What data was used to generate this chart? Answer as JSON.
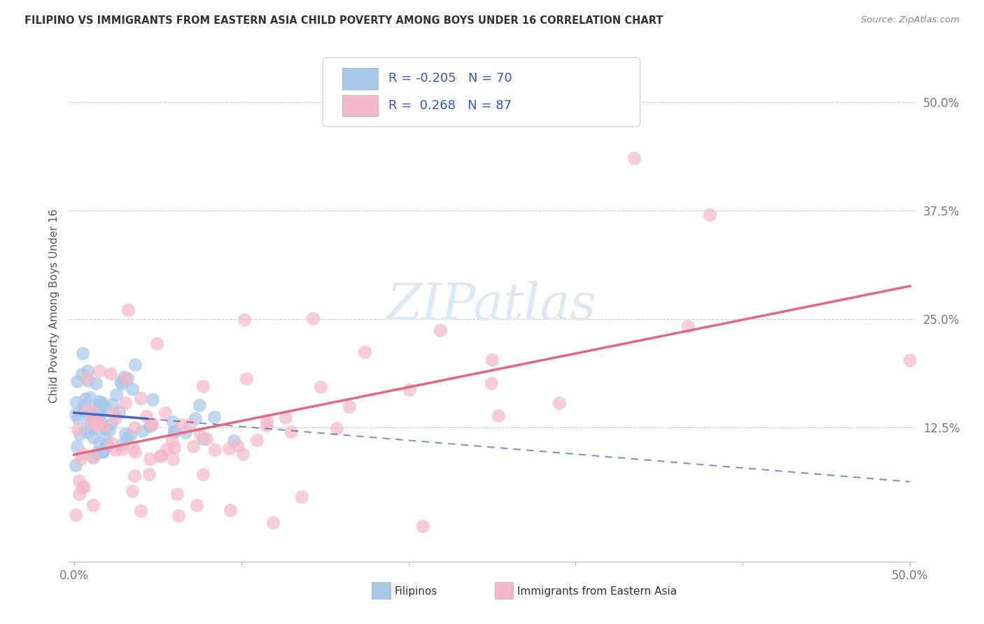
{
  "title": "FILIPINO VS IMMIGRANTS FROM EASTERN ASIA CHILD POVERTY AMONG BOYS UNDER 16 CORRELATION CHART",
  "source": "Source: ZipAtlas.com",
  "ylabel": "Child Poverty Among Boys Under 16",
  "legend_R_blue": "-0.205",
  "legend_N_blue": "70",
  "legend_R_pink": "0.268",
  "legend_N_pink": "87",
  "color_blue": "#a8c8e8",
  "color_blue_line": "#4466bb",
  "color_pink": "#f5b8c8",
  "color_pink_line": "#e06880",
  "watermark_color": "#e0e8f0",
  "grid_color": "#cccccc",
  "title_color": "#333333",
  "source_color": "#888888",
  "tick_color": "#777777",
  "ylabel_color": "#555555",
  "legend_text_color": "#3355cc",
  "background": "#ffffff"
}
